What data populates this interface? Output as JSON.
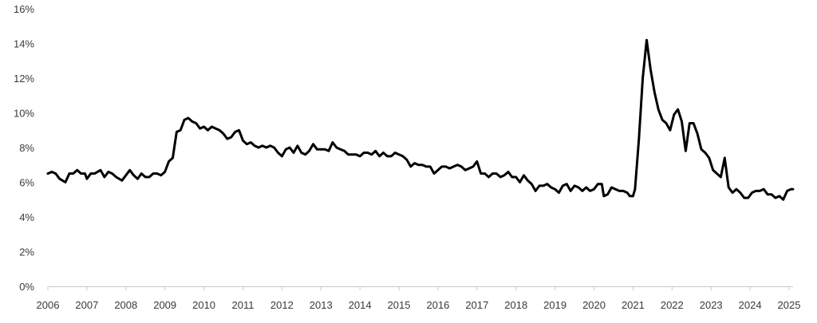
{
  "chart_data": {
    "type": "line",
    "title": "",
    "xlabel": "",
    "ylabel": "",
    "xlim": [
      2006,
      2025.25
    ],
    "ylim": [
      0,
      16
    ],
    "grid": false,
    "legend": "none",
    "line_color": "#000000",
    "y_ticks": [
      {
        "value": 0,
        "label": "0%"
      },
      {
        "value": 2,
        "label": "2%"
      },
      {
        "value": 4,
        "label": "4%"
      },
      {
        "value": 6,
        "label": "6%"
      },
      {
        "value": 8,
        "label": "8%"
      },
      {
        "value": 10,
        "label": "10%"
      },
      {
        "value": 12,
        "label": "12%"
      },
      {
        "value": 14,
        "label": "14%"
      },
      {
        "value": 16,
        "label": "16%"
      }
    ],
    "x_ticks": [
      {
        "value": 2006,
        "label": "2006"
      },
      {
        "value": 2007,
        "label": "2007"
      },
      {
        "value": 2008,
        "label": "2008"
      },
      {
        "value": 2009,
        "label": "2009"
      },
      {
        "value": 2010,
        "label": "2010"
      },
      {
        "value": 2011,
        "label": "2011"
      },
      {
        "value": 2012,
        "label": "2012"
      },
      {
        "value": 2013,
        "label": "2013"
      },
      {
        "value": 2014,
        "label": "2014"
      },
      {
        "value": 2015,
        "label": "2015"
      },
      {
        "value": 2016,
        "label": "2016"
      },
      {
        "value": 2017,
        "label": "2017"
      },
      {
        "value": 2018,
        "label": "2018"
      },
      {
        "value": 2019,
        "label": "2019"
      },
      {
        "value": 2020,
        "label": "2020"
      },
      {
        "value": 2021,
        "label": "2021"
      },
      {
        "value": 2022,
        "label": "2022"
      },
      {
        "value": 2023,
        "label": "2023"
      },
      {
        "value": 2024,
        "label": "2024"
      },
      {
        "value": 2025,
        "label": "2025"
      }
    ],
    "series": [
      {
        "points": [
          [
            2006.0,
            6.5
          ],
          [
            2006.1,
            6.6
          ],
          [
            2006.2,
            6.5
          ],
          [
            2006.3,
            6.2
          ],
          [
            2006.45,
            6.0
          ],
          [
            2006.55,
            6.5
          ],
          [
            2006.65,
            6.5
          ],
          [
            2006.75,
            6.7
          ],
          [
            2006.85,
            6.5
          ],
          [
            2006.95,
            6.5
          ],
          [
            2007.0,
            6.2
          ],
          [
            2007.1,
            6.5
          ],
          [
            2007.2,
            6.5
          ],
          [
            2007.35,
            6.7
          ],
          [
            2007.45,
            6.3
          ],
          [
            2007.55,
            6.6
          ],
          [
            2007.65,
            6.5
          ],
          [
            2007.75,
            6.3
          ],
          [
            2007.9,
            6.1
          ],
          [
            2008.0,
            6.4
          ],
          [
            2008.1,
            6.7
          ],
          [
            2008.2,
            6.4
          ],
          [
            2008.3,
            6.2
          ],
          [
            2008.4,
            6.5
          ],
          [
            2008.5,
            6.3
          ],
          [
            2008.6,
            6.3
          ],
          [
            2008.7,
            6.5
          ],
          [
            2008.8,
            6.5
          ],
          [
            2008.9,
            6.4
          ],
          [
            2009.0,
            6.6
          ],
          [
            2009.1,
            7.2
          ],
          [
            2009.2,
            7.4
          ],
          [
            2009.3,
            8.9
          ],
          [
            2009.4,
            9.0
          ],
          [
            2009.5,
            9.6
          ],
          [
            2009.6,
            9.7
          ],
          [
            2009.7,
            9.5
          ],
          [
            2009.8,
            9.4
          ],
          [
            2009.9,
            9.1
          ],
          [
            2010.0,
            9.2
          ],
          [
            2010.1,
            9.0
          ],
          [
            2010.2,
            9.2
          ],
          [
            2010.3,
            9.1
          ],
          [
            2010.4,
            9.0
          ],
          [
            2010.5,
            8.8
          ],
          [
            2010.6,
            8.5
          ],
          [
            2010.7,
            8.6
          ],
          [
            2010.8,
            8.9
          ],
          [
            2010.9,
            9.0
          ],
          [
            2011.0,
            8.4
          ],
          [
            2011.1,
            8.2
          ],
          [
            2011.2,
            8.3
          ],
          [
            2011.3,
            8.1
          ],
          [
            2011.4,
            8.0
          ],
          [
            2011.5,
            8.1
          ],
          [
            2011.6,
            8.0
          ],
          [
            2011.7,
            8.1
          ],
          [
            2011.8,
            8.0
          ],
          [
            2011.9,
            7.7
          ],
          [
            2012.0,
            7.5
          ],
          [
            2012.1,
            7.9
          ],
          [
            2012.2,
            8.0
          ],
          [
            2012.3,
            7.7
          ],
          [
            2012.4,
            8.1
          ],
          [
            2012.5,
            7.7
          ],
          [
            2012.6,
            7.6
          ],
          [
            2012.7,
            7.8
          ],
          [
            2012.8,
            8.2
          ],
          [
            2012.9,
            7.9
          ],
          [
            2013.0,
            7.9
          ],
          [
            2013.1,
            7.9
          ],
          [
            2013.2,
            7.8
          ],
          [
            2013.3,
            8.3
          ],
          [
            2013.4,
            8.0
          ],
          [
            2013.5,
            7.9
          ],
          [
            2013.6,
            7.8
          ],
          [
            2013.7,
            7.6
          ],
          [
            2013.8,
            7.6
          ],
          [
            2013.9,
            7.6
          ],
          [
            2014.0,
            7.5
          ],
          [
            2014.1,
            7.7
          ],
          [
            2014.2,
            7.7
          ],
          [
            2014.3,
            7.6
          ],
          [
            2014.4,
            7.8
          ],
          [
            2014.5,
            7.5
          ],
          [
            2014.6,
            7.7
          ],
          [
            2014.7,
            7.5
          ],
          [
            2014.8,
            7.5
          ],
          [
            2014.9,
            7.7
          ],
          [
            2015.0,
            7.6
          ],
          [
            2015.1,
            7.5
          ],
          [
            2015.2,
            7.3
          ],
          [
            2015.3,
            6.9
          ],
          [
            2015.4,
            7.1
          ],
          [
            2015.5,
            7.0
          ],
          [
            2015.6,
            7.0
          ],
          [
            2015.7,
            6.9
          ],
          [
            2015.8,
            6.9
          ],
          [
            2015.9,
            6.5
          ],
          [
            2016.0,
            6.7
          ],
          [
            2016.1,
            6.9
          ],
          [
            2016.2,
            6.9
          ],
          [
            2016.3,
            6.8
          ],
          [
            2016.4,
            6.9
          ],
          [
            2016.5,
            7.0
          ],
          [
            2016.6,
            6.9
          ],
          [
            2016.7,
            6.7
          ],
          [
            2016.8,
            6.8
          ],
          [
            2016.9,
            6.9
          ],
          [
            2017.0,
            7.2
          ],
          [
            2017.1,
            6.5
          ],
          [
            2017.2,
            6.5
          ],
          [
            2017.3,
            6.3
          ],
          [
            2017.4,
            6.5
          ],
          [
            2017.5,
            6.5
          ],
          [
            2017.6,
            6.3
          ],
          [
            2017.7,
            6.4
          ],
          [
            2017.8,
            6.6
          ],
          [
            2017.9,
            6.3
          ],
          [
            2018.0,
            6.3
          ],
          [
            2018.1,
            6.0
          ],
          [
            2018.2,
            6.4
          ],
          [
            2018.3,
            6.1
          ],
          [
            2018.4,
            5.9
          ],
          [
            2018.5,
            5.5
          ],
          [
            2018.6,
            5.8
          ],
          [
            2018.7,
            5.8
          ],
          [
            2018.8,
            5.9
          ],
          [
            2018.9,
            5.7
          ],
          [
            2019.0,
            5.6
          ],
          [
            2019.1,
            5.4
          ],
          [
            2019.2,
            5.8
          ],
          [
            2019.3,
            5.9
          ],
          [
            2019.4,
            5.5
          ],
          [
            2019.5,
            5.8
          ],
          [
            2019.6,
            5.7
          ],
          [
            2019.7,
            5.5
          ],
          [
            2019.8,
            5.7
          ],
          [
            2019.9,
            5.5
          ],
          [
            2020.0,
            5.6
          ],
          [
            2020.1,
            5.9
          ],
          [
            2020.2,
            5.9
          ],
          [
            2020.25,
            5.2
          ],
          [
            2020.35,
            5.3
          ],
          [
            2020.45,
            5.7
          ],
          [
            2020.55,
            5.6
          ],
          [
            2020.65,
            5.5
          ],
          [
            2020.75,
            5.5
          ],
          [
            2020.85,
            5.4
          ],
          [
            2020.92,
            5.2
          ],
          [
            2021.0,
            5.2
          ],
          [
            2021.05,
            5.6
          ],
          [
            2021.15,
            8.5
          ],
          [
            2021.25,
            12.0
          ],
          [
            2021.35,
            14.2
          ],
          [
            2021.45,
            12.5
          ],
          [
            2021.55,
            11.2
          ],
          [
            2021.65,
            10.2
          ],
          [
            2021.75,
            9.6
          ],
          [
            2021.85,
            9.4
          ],
          [
            2021.95,
            9.0
          ],
          [
            2022.05,
            9.9
          ],
          [
            2022.15,
            10.2
          ],
          [
            2022.25,
            9.5
          ],
          [
            2022.35,
            7.8
          ],
          [
            2022.45,
            9.4
          ],
          [
            2022.55,
            9.4
          ],
          [
            2022.65,
            8.8
          ],
          [
            2022.75,
            7.9
          ],
          [
            2022.85,
            7.7
          ],
          [
            2022.95,
            7.4
          ],
          [
            2023.05,
            6.7
          ],
          [
            2023.15,
            6.5
          ],
          [
            2023.25,
            6.3
          ],
          [
            2023.35,
            7.4
          ],
          [
            2023.45,
            5.7
          ],
          [
            2023.55,
            5.4
          ],
          [
            2023.65,
            5.6
          ],
          [
            2023.75,
            5.4
          ],
          [
            2023.85,
            5.1
          ],
          [
            2023.95,
            5.1
          ],
          [
            2024.05,
            5.4
          ],
          [
            2024.15,
            5.5
          ],
          [
            2024.25,
            5.5
          ],
          [
            2024.35,
            5.6
          ],
          [
            2024.45,
            5.3
          ],
          [
            2024.55,
            5.3
          ],
          [
            2024.65,
            5.1
          ],
          [
            2024.75,
            5.2
          ],
          [
            2024.85,
            5.0
          ],
          [
            2024.95,
            5.5
          ],
          [
            2025.05,
            5.6
          ],
          [
            2025.1,
            5.6
          ]
        ]
      }
    ]
  }
}
